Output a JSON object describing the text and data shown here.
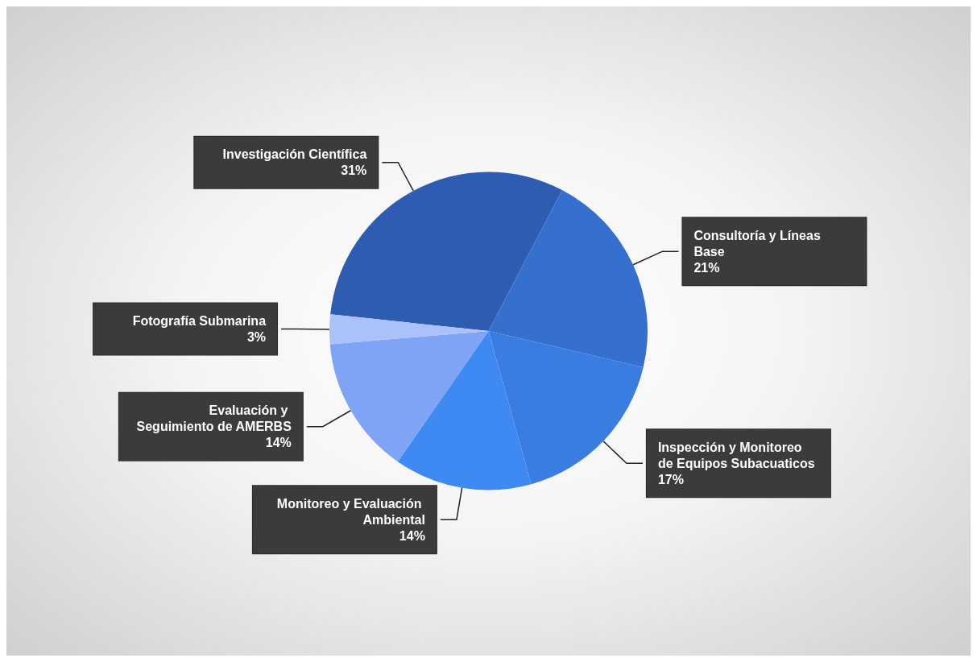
{
  "chart_data": {
    "type": "pie",
    "categories": [
      "Investigación Científica",
      "Consultoría y Líneas Base",
      "Inspección y Monitoreo de Equipos Subacuaticos",
      "Monitoreo y Evaluación Ambiental",
      "Evaluación y Seguimiento de AMERBS",
      "Fotografía Submarina"
    ],
    "values": [
      31,
      21,
      17,
      14,
      14,
      3
    ],
    "value_labels": [
      "31%",
      "21%",
      "17%",
      "14%",
      "14%",
      "3%"
    ],
    "colors": [
      "#2e5cb0",
      "#3570cf",
      "#3a7de0",
      "#3f89f2",
      "#7fa3f5",
      "#abc1fa"
    ],
    "legend": false
  }
}
